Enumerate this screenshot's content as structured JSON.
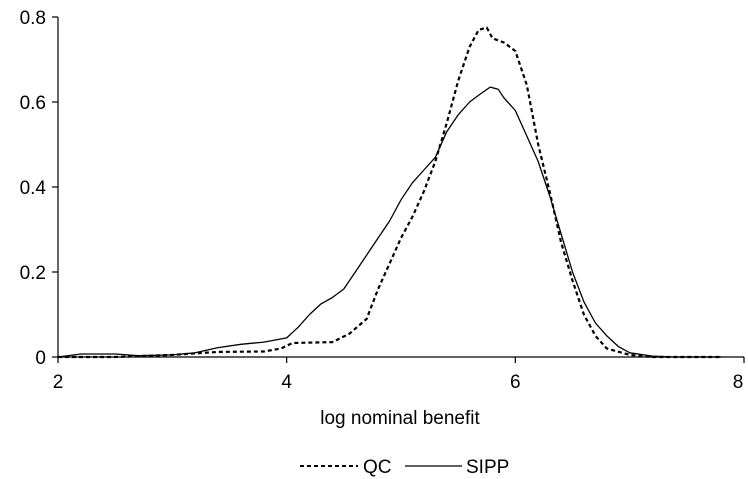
{
  "chart_data": {
    "type": "line",
    "title": "",
    "xlabel": "log nominal benefit",
    "ylabel": "",
    "xlim": [
      2,
      8
    ],
    "ylim": [
      0,
      0.8
    ],
    "x_ticks": [
      "2",
      "4",
      "6",
      "8"
    ],
    "y_ticks": [
      "0",
      "0.2",
      "0.4",
      "0.6",
      "0.8"
    ],
    "grid": false,
    "legend_position": "bottom",
    "series": [
      {
        "name": "QC",
        "style": "dashed",
        "color": "#000000",
        "points": [
          [
            2.0,
            0.0
          ],
          [
            2.5,
            0.0
          ],
          [
            3.0,
            0.005
          ],
          [
            3.4,
            0.012
          ],
          [
            3.8,
            0.013
          ],
          [
            3.95,
            0.02
          ],
          [
            4.05,
            0.033
          ],
          [
            4.4,
            0.035
          ],
          [
            4.55,
            0.055
          ],
          [
            4.7,
            0.09
          ],
          [
            4.8,
            0.16
          ],
          [
            4.9,
            0.22
          ],
          [
            5.0,
            0.28
          ],
          [
            5.1,
            0.33
          ],
          [
            5.2,
            0.39
          ],
          [
            5.3,
            0.46
          ],
          [
            5.4,
            0.55
          ],
          [
            5.5,
            0.65
          ],
          [
            5.6,
            0.73
          ],
          [
            5.68,
            0.77
          ],
          [
            5.75,
            0.775
          ],
          [
            5.8,
            0.75
          ],
          [
            5.9,
            0.74
          ],
          [
            6.0,
            0.72
          ],
          [
            6.1,
            0.64
          ],
          [
            6.2,
            0.5
          ],
          [
            6.3,
            0.39
          ],
          [
            6.4,
            0.27
          ],
          [
            6.5,
            0.18
          ],
          [
            6.6,
            0.1
          ],
          [
            6.7,
            0.05
          ],
          [
            6.8,
            0.02
          ],
          [
            7.0,
            0.005
          ],
          [
            7.2,
            0.0
          ],
          [
            7.8,
            0.0
          ]
        ]
      },
      {
        "name": "SIPP",
        "style": "solid",
        "color": "#000000",
        "points": [
          [
            2.0,
            0.0
          ],
          [
            2.2,
            0.007
          ],
          [
            2.5,
            0.007
          ],
          [
            2.7,
            0.003
          ],
          [
            3.0,
            0.005
          ],
          [
            3.2,
            0.01
          ],
          [
            3.4,
            0.022
          ],
          [
            3.6,
            0.03
          ],
          [
            3.8,
            0.035
          ],
          [
            4.0,
            0.045
          ],
          [
            4.1,
            0.07
          ],
          [
            4.2,
            0.1
          ],
          [
            4.3,
            0.125
          ],
          [
            4.4,
            0.14
          ],
          [
            4.5,
            0.16
          ],
          [
            4.6,
            0.2
          ],
          [
            4.7,
            0.24
          ],
          [
            4.8,
            0.28
          ],
          [
            4.9,
            0.32
          ],
          [
            5.0,
            0.37
          ],
          [
            5.1,
            0.41
          ],
          [
            5.2,
            0.44
          ],
          [
            5.3,
            0.47
          ],
          [
            5.4,
            0.53
          ],
          [
            5.5,
            0.57
          ],
          [
            5.6,
            0.6
          ],
          [
            5.7,
            0.62
          ],
          [
            5.78,
            0.635
          ],
          [
            5.85,
            0.63
          ],
          [
            5.9,
            0.61
          ],
          [
            6.0,
            0.58
          ],
          [
            6.1,
            0.52
          ],
          [
            6.2,
            0.46
          ],
          [
            6.3,
            0.38
          ],
          [
            6.4,
            0.29
          ],
          [
            6.5,
            0.2
          ],
          [
            6.6,
            0.13
          ],
          [
            6.7,
            0.08
          ],
          [
            6.8,
            0.05
          ],
          [
            6.9,
            0.025
          ],
          [
            7.0,
            0.01
          ],
          [
            7.2,
            0.002
          ],
          [
            7.4,
            0.0
          ],
          [
            7.8,
            0.0
          ]
        ]
      }
    ]
  }
}
